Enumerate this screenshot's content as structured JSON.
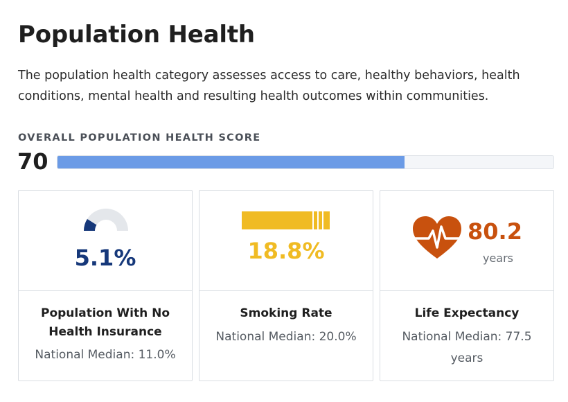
{
  "header": {
    "title": "Population Health",
    "description": "The population health category assesses access to care, healthy behaviors, health conditions, mental health and resulting health outcomes within communities."
  },
  "overall": {
    "label": "OVERALL POPULATION HEALTH SCORE",
    "value": "70",
    "percent": 70
  },
  "colors": {
    "bar_fill": "#6b9be6",
    "insurance": "#16387a",
    "smoking": "#f0bb23",
    "life_expectancy": "#c8510e",
    "gauge_track": "#e4e7eb"
  },
  "cards": [
    {
      "value": "5.1%",
      "fraction": 0.051,
      "name": "Population With No Health Insurance",
      "median": "National Median: 11.0%",
      "icon": "half-gauge-icon"
    },
    {
      "value": "18.8%",
      "fraction": 0.188,
      "name": "Smoking Rate",
      "median": "National Median: 20.0%",
      "icon": "cigarette-icon"
    },
    {
      "value": "80.2",
      "unit": "years",
      "name": "Life Expectancy",
      "median": "National Median: 77.5 years",
      "icon": "heartbeat-icon"
    }
  ]
}
